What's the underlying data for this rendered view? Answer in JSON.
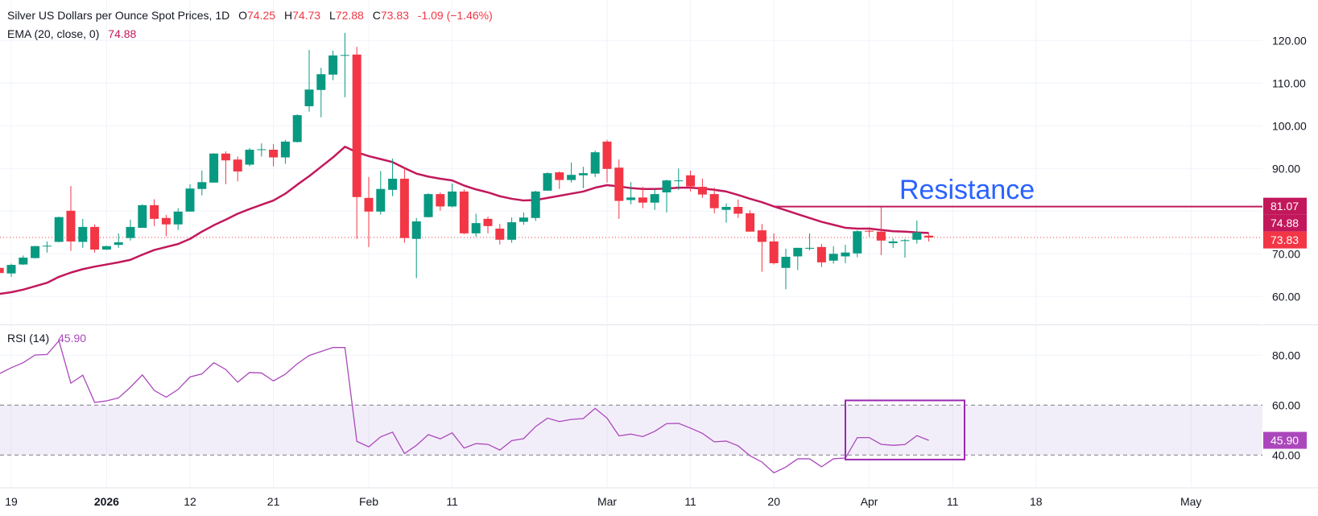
{
  "header": {
    "symbol_title": "Silver US Dollars per Ounce Spot Prices, 1D",
    "o_label": "O",
    "o_value": "74.25",
    "h_label": "H",
    "h_value": "74.73",
    "l_label": "L",
    "l_value": "72.88",
    "c_label": "C",
    "c_value": "73.83",
    "change": "-1.09 (−1.46%)",
    "ema_label": "EMA (20, close, 0)",
    "ema_value": "74.88"
  },
  "rsi_legend": {
    "label": "RSI (14)",
    "value": "45.90"
  },
  "colors": {
    "up": "#089981",
    "down": "#f23645",
    "ema": "#c2185b",
    "rsi": "#ab47bc",
    "resistance_text": "#2962ff",
    "box": "#9c27b0"
  },
  "chart_data": [
    {
      "type": "candlestick",
      "title": "Silver US Dollars per Ounce Spot Prices, 1D",
      "ylim": [
        57,
        124
      ],
      "y_ticks": [
        "120.00",
        "110.00",
        "100.00",
        "90.00",
        "70.00",
        "60.00"
      ],
      "y_tick_values": [
        120,
        110,
        100,
        90,
        70,
        60
      ],
      "x_ticks": [
        {
          "label": "19",
          "bar": 1
        },
        {
          "label": "2026",
          "bar": 9,
          "bold": true
        },
        {
          "label": "12",
          "bar": 16
        },
        {
          "label": "21",
          "bar": 23
        },
        {
          "label": "Feb",
          "bar": 31
        },
        {
          "label": "11",
          "bar": 38
        },
        {
          "label": "Mar",
          "bar": 51
        },
        {
          "label": "11",
          "bar": 58
        },
        {
          "label": "20",
          "bar": 65
        },
        {
          "label": "Apr",
          "bar": 73
        },
        {
          "label": "11",
          "bar": 80
        },
        {
          "label": "18",
          "bar": 87
        },
        {
          "label": "May",
          "bar": 100
        }
      ],
      "ohlc": [
        [
          66.7,
          67.0,
          65.3,
          65.5
        ],
        [
          65.4,
          67.7,
          64.6,
          67.4
        ],
        [
          67.5,
          69.6,
          67.4,
          69.1
        ],
        [
          69.0,
          71.9,
          68.9,
          71.8
        ],
        [
          71.8,
          72.9,
          70.3,
          71.9
        ],
        [
          72.8,
          78.7,
          72.7,
          78.6
        ],
        [
          80.1,
          85.9,
          70.7,
          72.9
        ],
        [
          72.8,
          78.2,
          71.4,
          76.3
        ],
        [
          76.3,
          76.9,
          70.3,
          71.0
        ],
        [
          71.0,
          71.9,
          70.9,
          71.8
        ],
        [
          72.1,
          74.8,
          71.4,
          72.7
        ],
        [
          73.7,
          78.0,
          73.1,
          76.3
        ],
        [
          76.1,
          81.6,
          76.1,
          81.4
        ],
        [
          81.4,
          82.8,
          76.5,
          78.2
        ],
        [
          78.4,
          79.1,
          74.1,
          76.9
        ],
        [
          76.9,
          80.7,
          75.6,
          79.9
        ],
        [
          79.9,
          86.3,
          79.9,
          85.3
        ],
        [
          85.2,
          89.5,
          83.7,
          86.8
        ],
        [
          86.7,
          93.6,
          86.7,
          93.5
        ],
        [
          93.5,
          94.0,
          86.3,
          91.9
        ],
        [
          92.1,
          92.8,
          87.0,
          89.3
        ],
        [
          90.9,
          94.8,
          90.5,
          94.4
        ],
        [
          94.4,
          95.9,
          92.8,
          94.5
        ],
        [
          94.4,
          95.7,
          90.5,
          92.6
        ],
        [
          92.6,
          96.7,
          91.1,
          96.3
        ],
        [
          96.2,
          102.7,
          96.1,
          102.5
        ],
        [
          104.6,
          117.8,
          103.3,
          108.5
        ],
        [
          108.4,
          113.6,
          102.0,
          112.1
        ],
        [
          112.0,
          117.6,
          110.7,
          116.5
        ],
        [
          116.5,
          121.8,
          106.7,
          116.6
        ],
        [
          116.7,
          118.5,
          73.5,
          83.3
        ],
        [
          83.1,
          88.0,
          71.6,
          79.9
        ],
        [
          79.9,
          89.4,
          79.2,
          85.2
        ],
        [
          85.0,
          92.3,
          83.5,
          87.6
        ],
        [
          87.6,
          90.3,
          72.6,
          73.7
        ],
        [
          73.5,
          78.4,
          64.3,
          77.6
        ],
        [
          78.6,
          84.2,
          78.5,
          84.0
        ],
        [
          84.0,
          84.4,
          80.1,
          81.1
        ],
        [
          81.1,
          86.5,
          80.9,
          84.6
        ],
        [
          84.6,
          85.1,
          74.6,
          74.8
        ],
        [
          74.8,
          79.4,
          74.0,
          77.2
        ],
        [
          78.2,
          78.7,
          74.8,
          76.5
        ],
        [
          75.9,
          77.0,
          72.2,
          73.3
        ],
        [
          73.3,
          78.5,
          72.6,
          77.4
        ],
        [
          77.5,
          79.7,
          76.8,
          78.5
        ],
        [
          78.4,
          84.8,
          77.7,
          84.6
        ],
        [
          84.8,
          89.1,
          84.8,
          88.9
        ],
        [
          89.1,
          89.3,
          85.2,
          87.3
        ],
        [
          87.3,
          91.4,
          86.7,
          88.5
        ],
        [
          88.4,
          90.4,
          85.4,
          88.9
        ],
        [
          88.8,
          94.2,
          88.0,
          93.8
        ],
        [
          96.3,
          96.7,
          86.7,
          89.9
        ],
        [
          90.2,
          92.1,
          78.2,
          82.4
        ],
        [
          82.6,
          86.8,
          81.6,
          83.2
        ],
        [
          83.2,
          85.7,
          80.7,
          82.0
        ],
        [
          82.0,
          85.1,
          80.3,
          84.0
        ],
        [
          84.4,
          87.4,
          79.7,
          87.2
        ],
        [
          87.1,
          90.0,
          85.0,
          87.2
        ],
        [
          88.4,
          89.5,
          84.6,
          85.8
        ],
        [
          85.7,
          87.6,
          83.1,
          83.9
        ],
        [
          84.0,
          85.5,
          79.5,
          80.7
        ],
        [
          80.3,
          81.8,
          77.3,
          81.0
        ],
        [
          81.0,
          82.7,
          78.4,
          79.4
        ],
        [
          79.5,
          80.2,
          75.2,
          75.2
        ],
        [
          75.5,
          77.0,
          65.8,
          72.8
        ],
        [
          72.9,
          74.8,
          67.5,
          67.8
        ],
        [
          66.7,
          71.2,
          61.7,
          69.3
        ],
        [
          69.4,
          71.4,
          66.2,
          71.4
        ],
        [
          71.2,
          74.8,
          70.8,
          71.4
        ],
        [
          71.6,
          72.3,
          66.9,
          68.0
        ],
        [
          68.4,
          71.8,
          67.7,
          70.0
        ],
        [
          69.4,
          72.1,
          67.8,
          70.3
        ],
        [
          70.1,
          75.5,
          69.2,
          75.3
        ],
        [
          75.4,
          76.3,
          74.0,
          75.2
        ],
        [
          75.2,
          81.2,
          69.7,
          73.1
        ],
        [
          72.5,
          73.6,
          71.4,
          72.9
        ],
        [
          73.0,
          73.5,
          69.1,
          73.2
        ],
        [
          73.3,
          77.8,
          72.4,
          75.0
        ],
        [
          74.25,
          74.73,
          72.88,
          73.83
        ]
      ],
      "ema20": [
        60.6,
        61.0,
        61.6,
        62.4,
        63.2,
        64.6,
        65.6,
        66.4,
        67.0,
        67.5,
        68.0,
        68.6,
        69.8,
        70.9,
        71.6,
        72.3,
        73.5,
        75.2,
        76.7,
        78.0,
        79.4,
        80.5,
        81.5,
        82.5,
        84.1,
        86.2,
        88.2,
        90.4,
        92.6,
        95.1,
        93.8,
        92.9,
        92.2,
        91.5,
        90.1,
        88.8,
        88.1,
        87.6,
        87.2,
        86.0,
        85.1,
        84.4,
        83.5,
        82.9,
        82.5,
        82.6,
        83.1,
        83.6,
        84.1,
        84.6,
        85.5,
        86.1,
        85.8,
        85.4,
        85.2,
        85.2,
        85.3,
        85.5,
        85.5,
        85.3,
        85.0,
        84.6,
        83.8,
        82.9,
        82.1,
        81.1,
        80.2,
        79.3,
        78.4,
        77.5,
        76.8,
        76.1,
        75.9,
        75.9,
        75.6,
        75.3,
        75.2,
        75.0,
        74.88
      ],
      "last_price": 73.83,
      "last_price_label": "73.83",
      "ema_last_label": "74.88",
      "resistance": {
        "value": 81.07,
        "label": "81.07",
        "text": "Resistance",
        "start_bar": 65
      }
    },
    {
      "type": "line",
      "title": "RSI (14)",
      "ylim": [
        26,
        92
      ],
      "y_ticks": [
        "80.00",
        "60.00",
        "40.00"
      ],
      "y_tick_values": [
        80,
        60,
        40
      ],
      "band": [
        40,
        60
      ],
      "rsi": [
        72.6,
        75.0,
        77.0,
        80.1,
        80.3,
        85.8,
        68.8,
        72.0,
        61.1,
        61.7,
        62.9,
        67.2,
        72.1,
        65.9,
        63.2,
        66.3,
        71.3,
        72.5,
        77.0,
        74.3,
        69.2,
        73.1,
        72.9,
        69.7,
        72.4,
        76.6,
        79.9,
        81.5,
        83.1,
        83.1,
        45.5,
        43.3,
        47.3,
        49.2,
        40.6,
        43.9,
        48.2,
        46.5,
        48.9,
        42.8,
        44.6,
        44.3,
        42.0,
        45.8,
        46.6,
        51.4,
        54.8,
        53.4,
        54.3,
        54.6,
        58.7,
        54.8,
        47.7,
        48.4,
        47.4,
        49.5,
        52.6,
        52.7,
        50.8,
        48.7,
        45.3,
        45.6,
        43.7,
        39.7,
        37.2,
        32.9,
        35.2,
        38.5,
        38.5,
        35.3,
        38.5,
        38.8,
        47.0,
        47.0,
        44.3,
        43.9,
        44.2,
        47.8,
        45.9
      ],
      "last_label": "45.90",
      "highlight_box": {
        "bar_from": 71,
        "bar_to": 81,
        "rsi_from": 38.2,
        "rsi_to": 61.9
      }
    }
  ]
}
